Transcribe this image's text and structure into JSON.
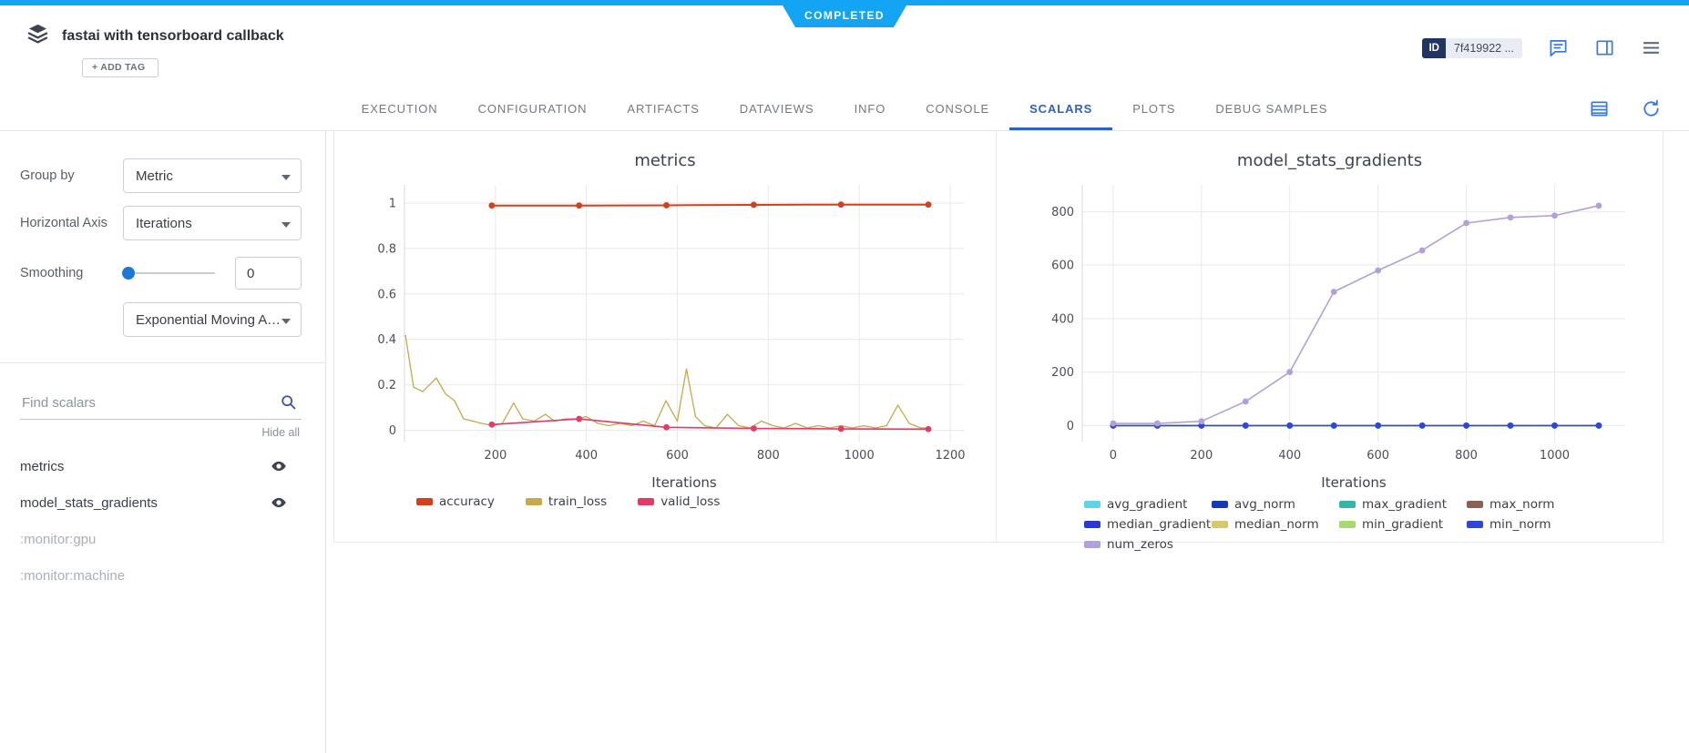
{
  "topbar": {
    "status": "COMPLETED",
    "accent_color": "#14a4f4"
  },
  "header": {
    "title": "fastai with tensorboard callback",
    "add_tag": "+ ADD TAG",
    "id_label": "ID",
    "id_value": "7f419922 ..."
  },
  "tabs": {
    "items": [
      "EXECUTION",
      "CONFIGURATION",
      "ARTIFACTS",
      "DATAVIEWS",
      "INFO",
      "CONSOLE",
      "SCALARS",
      "PLOTS",
      "DEBUG SAMPLES"
    ],
    "active": "SCALARS",
    "active_color": "#2a63c4"
  },
  "sidebar": {
    "group_by_label": "Group by",
    "group_by_value": "Metric",
    "horizontal_axis_label": "Horizontal Axis",
    "horizontal_axis_value": "Iterations",
    "smoothing_label": "Smoothing",
    "smoothing_value": "0",
    "smoothing_method": "Exponential Moving Av...",
    "search_placeholder": "Find scalars",
    "hide_all": "Hide all",
    "scalars": [
      {
        "name": "metrics",
        "enabled": true
      },
      {
        "name": "model_stats_gradients",
        "enabled": true
      },
      {
        "name": ":monitor:gpu",
        "enabled": false
      },
      {
        "name": ":monitor:machine",
        "enabled": false
      }
    ]
  },
  "chart_data": [
    {
      "type": "line",
      "title": "metrics",
      "xlabel": "Iterations",
      "ylabel": "",
      "xlim": [
        0,
        1230
      ],
      "ylim": [
        -0.05,
        1.08
      ],
      "xticks": [
        200,
        400,
        600,
        800,
        1000,
        1200
      ],
      "yticks": [
        0,
        0.2,
        0.4,
        0.6,
        0.8,
        1
      ],
      "grid": true,
      "legend_position": "bottom",
      "series": [
        {
          "name": "accuracy",
          "color": "#d4401a",
          "width": 2,
          "markers": true,
          "x": [
            192,
            384,
            576,
            768,
            960,
            1152
          ],
          "y": [
            0.989,
            0.989,
            0.99,
            0.992,
            0.993,
            0.993
          ]
        },
        {
          "name": "train_loss",
          "color": "#c8a84d",
          "width": 1.3,
          "markers": false,
          "x": [
            2,
            20,
            40,
            70,
            90,
            110,
            130,
            150,
            170,
            195,
            215,
            240,
            260,
            285,
            310,
            330,
            355,
            380,
            400,
            425,
            450,
            475,
            500,
            525,
            550,
            575,
            600,
            620,
            640,
            660,
            685,
            710,
            735,
            760,
            785,
            810,
            835,
            860,
            885,
            910,
            935,
            960,
            985,
            1010,
            1035,
            1060,
            1085,
            1110,
            1135,
            1155
          ],
          "y": [
            0.42,
            0.19,
            0.17,
            0.23,
            0.16,
            0.13,
            0.05,
            0.04,
            0.03,
            0.02,
            0.03,
            0.12,
            0.05,
            0.04,
            0.07,
            0.04,
            0.05,
            0.05,
            0.06,
            0.03,
            0.02,
            0.03,
            0.02,
            0.04,
            0.02,
            0.13,
            0.04,
            0.27,
            0.06,
            0.02,
            0.01,
            0.07,
            0.02,
            0.01,
            0.04,
            0.02,
            0.01,
            0.03,
            0.01,
            0.02,
            0.01,
            0.02,
            0.01,
            0.02,
            0.01,
            0.02,
            0.11,
            0.03,
            0.01,
            0.01
          ]
        },
        {
          "name": "valid_loss",
          "color": "#e23b68",
          "width": 1.6,
          "markers": true,
          "x": [
            192,
            384,
            576,
            768,
            960,
            1152
          ],
          "y": [
            0.025,
            0.05,
            0.013,
            0.008,
            0.006,
            0.005
          ]
        }
      ]
    },
    {
      "type": "line",
      "title": "model_stats_gradients",
      "xlabel": "Iterations",
      "ylabel": "",
      "xlim": [
        -70,
        1160
      ],
      "ylim": [
        -60,
        900
      ],
      "xticks": [
        0,
        200,
        400,
        600,
        800,
        1000
      ],
      "yticks": [
        0,
        200,
        400,
        600,
        800
      ],
      "grid": true,
      "legend_position": "bottom",
      "series": [
        {
          "name": "avg_gradient",
          "color": "#5fd4e6",
          "width": 1.5,
          "markers": true,
          "x": [
            0,
            100,
            200,
            300,
            400,
            500,
            600,
            700,
            800,
            900,
            1000,
            1100
          ],
          "y": [
            0,
            0,
            0,
            0,
            0,
            0,
            0,
            0,
            0,
            0,
            0,
            0
          ]
        },
        {
          "name": "avg_norm",
          "color": "#1839b5",
          "width": 1.5,
          "markers": true,
          "x": [
            0,
            100,
            200,
            300,
            400,
            500,
            600,
            700,
            800,
            900,
            1000,
            1100
          ],
          "y": [
            0,
            0,
            0,
            0,
            0,
            0,
            0,
            0,
            0,
            0,
            0,
            0
          ]
        },
        {
          "name": "max_gradient",
          "color": "#35b5aa",
          "width": 1.5,
          "markers": true,
          "x": [
            0,
            100,
            200,
            300,
            400,
            500,
            600,
            700,
            800,
            900,
            1000,
            1100
          ],
          "y": [
            0,
            0,
            0,
            0,
            0,
            0,
            0,
            0,
            0,
            0,
            0,
            0
          ]
        },
        {
          "name": "max_norm",
          "color": "#8a6255",
          "width": 1.5,
          "markers": true,
          "x": [
            0,
            100,
            200,
            300,
            400,
            500,
            600,
            700,
            800,
            900,
            1000,
            1100
          ],
          "y": [
            0,
            0,
            0,
            0,
            0,
            0,
            0,
            0,
            0,
            0,
            0,
            0
          ]
        },
        {
          "name": "median_gradient",
          "color": "#2a39d2",
          "width": 1.5,
          "markers": true,
          "x": [
            0,
            100,
            200,
            300,
            400,
            500,
            600,
            700,
            800,
            900,
            1000,
            1100
          ],
          "y": [
            0,
            0,
            0,
            0,
            0,
            0,
            0,
            0,
            0,
            0,
            0,
            0
          ]
        },
        {
          "name": "median_norm",
          "color": "#d4ca6a",
          "width": 1.5,
          "markers": true,
          "x": [
            0,
            100,
            200,
            300,
            400,
            500,
            600,
            700,
            800,
            900,
            1000,
            1100
          ],
          "y": [
            0,
            0,
            0,
            0,
            0,
            0,
            0,
            0,
            0,
            0,
            0,
            0
          ]
        },
        {
          "name": "min_gradient",
          "color": "#a6da70",
          "width": 1.5,
          "markers": true,
          "x": [
            0,
            100,
            200,
            300,
            400,
            500,
            600,
            700,
            800,
            900,
            1000,
            1100
          ],
          "y": [
            0,
            0,
            0,
            0,
            0,
            0,
            0,
            0,
            0,
            0,
            0,
            0
          ]
        },
        {
          "name": "min_norm",
          "color": "#2f46d9",
          "width": 1.5,
          "markers": true,
          "x": [
            0,
            100,
            200,
            300,
            400,
            500,
            600,
            700,
            800,
            900,
            1000,
            1100
          ],
          "y": [
            0,
            0,
            0,
            0,
            0,
            0,
            0,
            0,
            0,
            0,
            0,
            0
          ]
        },
        {
          "name": "num_zeros",
          "color": "#b2a1d8",
          "width": 1.6,
          "markers": true,
          "x": [
            0,
            100,
            200,
            300,
            400,
            500,
            600,
            700,
            800,
            900,
            1000,
            1100
          ],
          "y": [
            8,
            8,
            16,
            90,
            200,
            500,
            580,
            655,
            757,
            778,
            785,
            822
          ]
        }
      ]
    }
  ]
}
